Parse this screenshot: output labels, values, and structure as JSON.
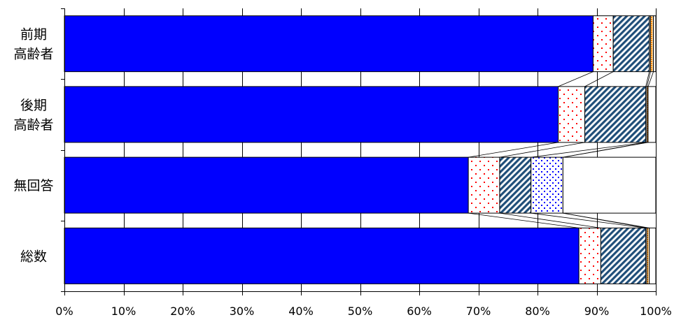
{
  "chart_data": {
    "type": "bar",
    "orientation": "horizontal",
    "stacked": true,
    "normalized_percent": true,
    "categories": [
      [
        "前期",
        "高齢者"
      ],
      [
        "後期",
        "高齢者"
      ],
      [
        "無回答"
      ],
      [
        "総数"
      ]
    ],
    "series": [
      {
        "color": "#0000ff",
        "pattern": "solid",
        "values": [
          89.4,
          83.5,
          68.3,
          87.0
        ]
      },
      {
        "color": "#ff0000",
        "pattern": "red-dots",
        "values": [
          3.4,
          4.5,
          5.3,
          3.7
        ]
      },
      {
        "color": "#1f4e79",
        "pattern": "navy-diagonal",
        "values": [
          6.1,
          10.3,
          5.3,
          7.6
        ]
      },
      {
        "color": "#0000ff",
        "pattern": "blue-dots",
        "values": [
          0.2,
          0.2,
          5.4,
          0.2
        ]
      },
      {
        "color": "#ff8c00",
        "pattern": "orange",
        "values": [
          0.5,
          0.2,
          0.0,
          0.4
        ]
      },
      {
        "color": "#ffffff",
        "pattern": "white",
        "values": [
          0.4,
          1.3,
          15.7,
          1.1
        ]
      }
    ],
    "xlim": [
      0,
      100
    ],
    "x_ticks": [
      "0%",
      "10%",
      "20%",
      "30%",
      "40%",
      "50%",
      "60%",
      "70%",
      "80%",
      "90%",
      "100%"
    ],
    "vertical_grid": true,
    "series_connector_lines": true
  }
}
